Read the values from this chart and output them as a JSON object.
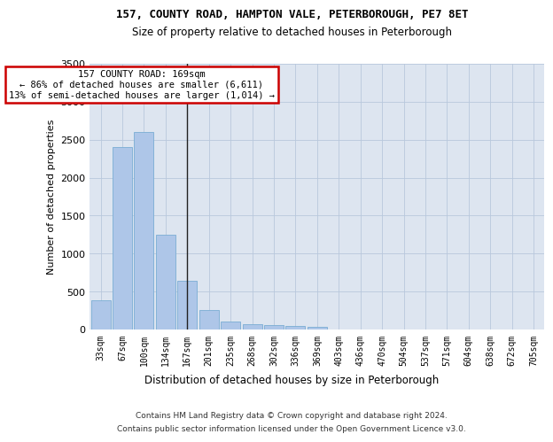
{
  "title1": "157, COUNTY ROAD, HAMPTON VALE, PETERBOROUGH, PE7 8ET",
  "title2": "Size of property relative to detached houses in Peterborough",
  "xlabel": "Distribution of detached houses by size in Peterborough",
  "ylabel": "Number of detached properties",
  "categories": [
    "33sqm",
    "67sqm",
    "100sqm",
    "134sqm",
    "167sqm",
    "201sqm",
    "235sqm",
    "268sqm",
    "302sqm",
    "336sqm",
    "369sqm",
    "403sqm",
    "436sqm",
    "470sqm",
    "504sqm",
    "537sqm",
    "571sqm",
    "604sqm",
    "638sqm",
    "672sqm",
    "705sqm"
  ],
  "values": [
    390,
    2400,
    2600,
    1250,
    640,
    255,
    100,
    65,
    60,
    45,
    30,
    0,
    0,
    0,
    0,
    0,
    0,
    0,
    0,
    0,
    0
  ],
  "bar_color": "#aec6e8",
  "bar_edge_color": "#7aadd4",
  "vline_x": 4,
  "highlight_line_color": "#222222",
  "annotation_text": "157 COUNTY ROAD: 169sqm\n← 86% of detached houses are smaller (6,611)\n13% of semi-detached houses are larger (1,014) →",
  "annotation_box_color": "#ffffff",
  "annotation_border_color": "#cc0000",
  "ylim": [
    0,
    3500
  ],
  "yticks": [
    0,
    500,
    1000,
    1500,
    2000,
    2500,
    3000,
    3500
  ],
  "background_color": "#dde5f0",
  "footer1": "Contains HM Land Registry data © Crown copyright and database right 2024.",
  "footer2": "Contains public sector information licensed under the Open Government Licence v3.0."
}
